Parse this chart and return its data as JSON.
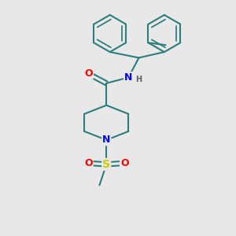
{
  "background_color": "#e8e8e8",
  "bond_color": "#2d7d7d",
  "bond_width": 1.5,
  "atom_colors": {
    "N": "#0000ff",
    "O": "#ff0000",
    "S": "#cccc00",
    "C": "#2d7d7d",
    "H": "#606060"
  },
  "font_size_atom": 8,
  "figsize": [
    3.0,
    3.0
  ],
  "dpi": 100,
  "xlim": [
    0,
    10
  ],
  "ylim": [
    0,
    10
  ]
}
